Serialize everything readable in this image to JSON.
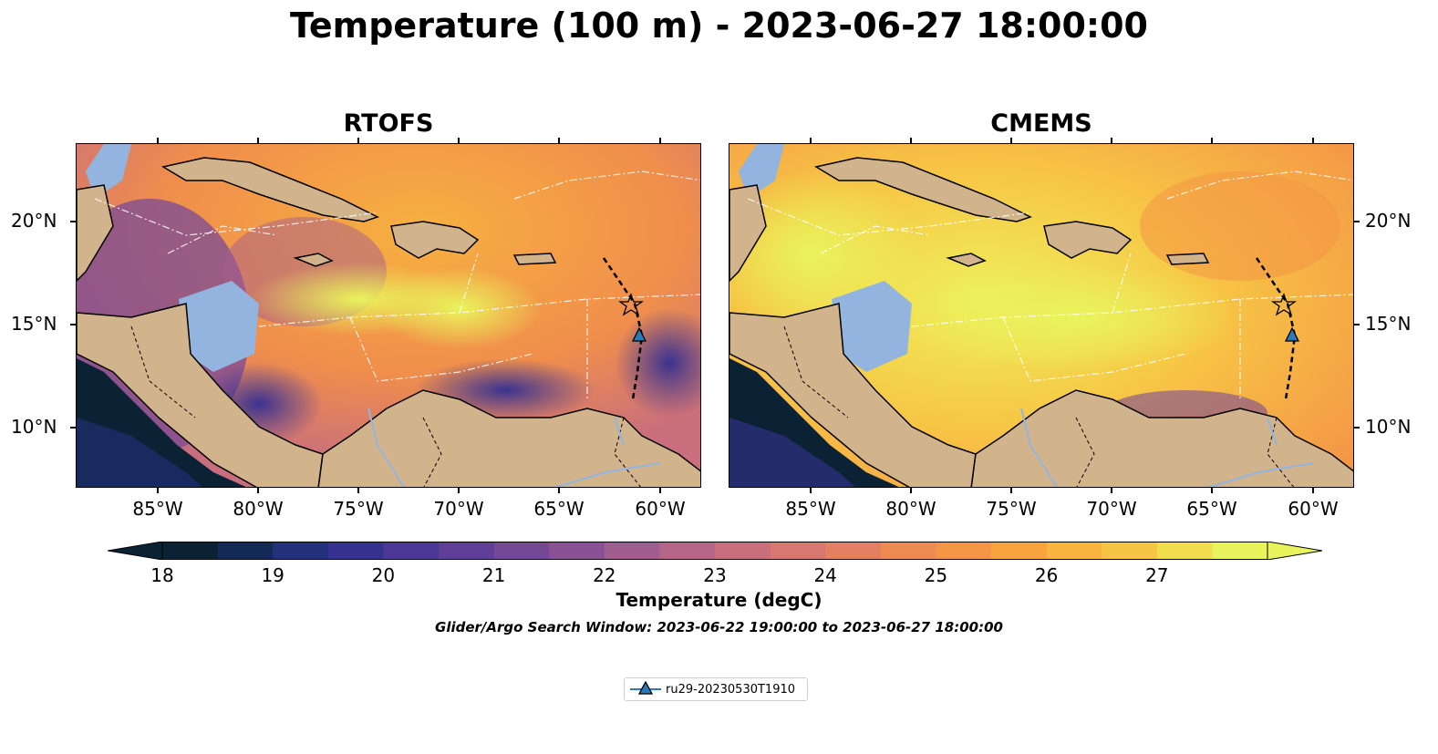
{
  "figure": {
    "title": "Temperature (100 m) - 2023-06-27 18:00:00",
    "caption": "Glider/Argo Search Window: 2023-06-22 19:00:00 to 2023-06-27 18:00:00"
  },
  "panels": [
    {
      "title": "RTOFS"
    },
    {
      "title": "CMEMS"
    }
  ],
  "axes": {
    "lon_labels": [
      "85°W",
      "80°W",
      "75°W",
      "70°W",
      "65°W",
      "60°W"
    ],
    "lat_labels": [
      "20°N",
      "15°N",
      "10°N"
    ]
  },
  "colorbar": {
    "label": "Temperature (degC)",
    "ticks": [
      "18",
      "19",
      "20",
      "21",
      "22",
      "23",
      "24",
      "25",
      "26",
      "27"
    ],
    "colormap_colors": [
      "#0b2235",
      "#122a55",
      "#23317a",
      "#35338f",
      "#4a3796",
      "#5f3f98",
      "#754896",
      "#8a5294",
      "#a05d8f",
      "#b56688",
      "#c86e7d",
      "#d87670",
      "#e57f62",
      "#ee8a52",
      "#f49646",
      "#f7a43f",
      "#f9b43f",
      "#f7c545",
      "#f2dd4c",
      "#e9f45c"
    ]
  },
  "legend": {
    "label": "ru29-20230530T1910",
    "marker_color": "#2a7ab8"
  },
  "colors": {
    "land": "#d2b48c",
    "shallow_water": "#94b4e0",
    "deep_pacific": "#0b2235"
  }
}
